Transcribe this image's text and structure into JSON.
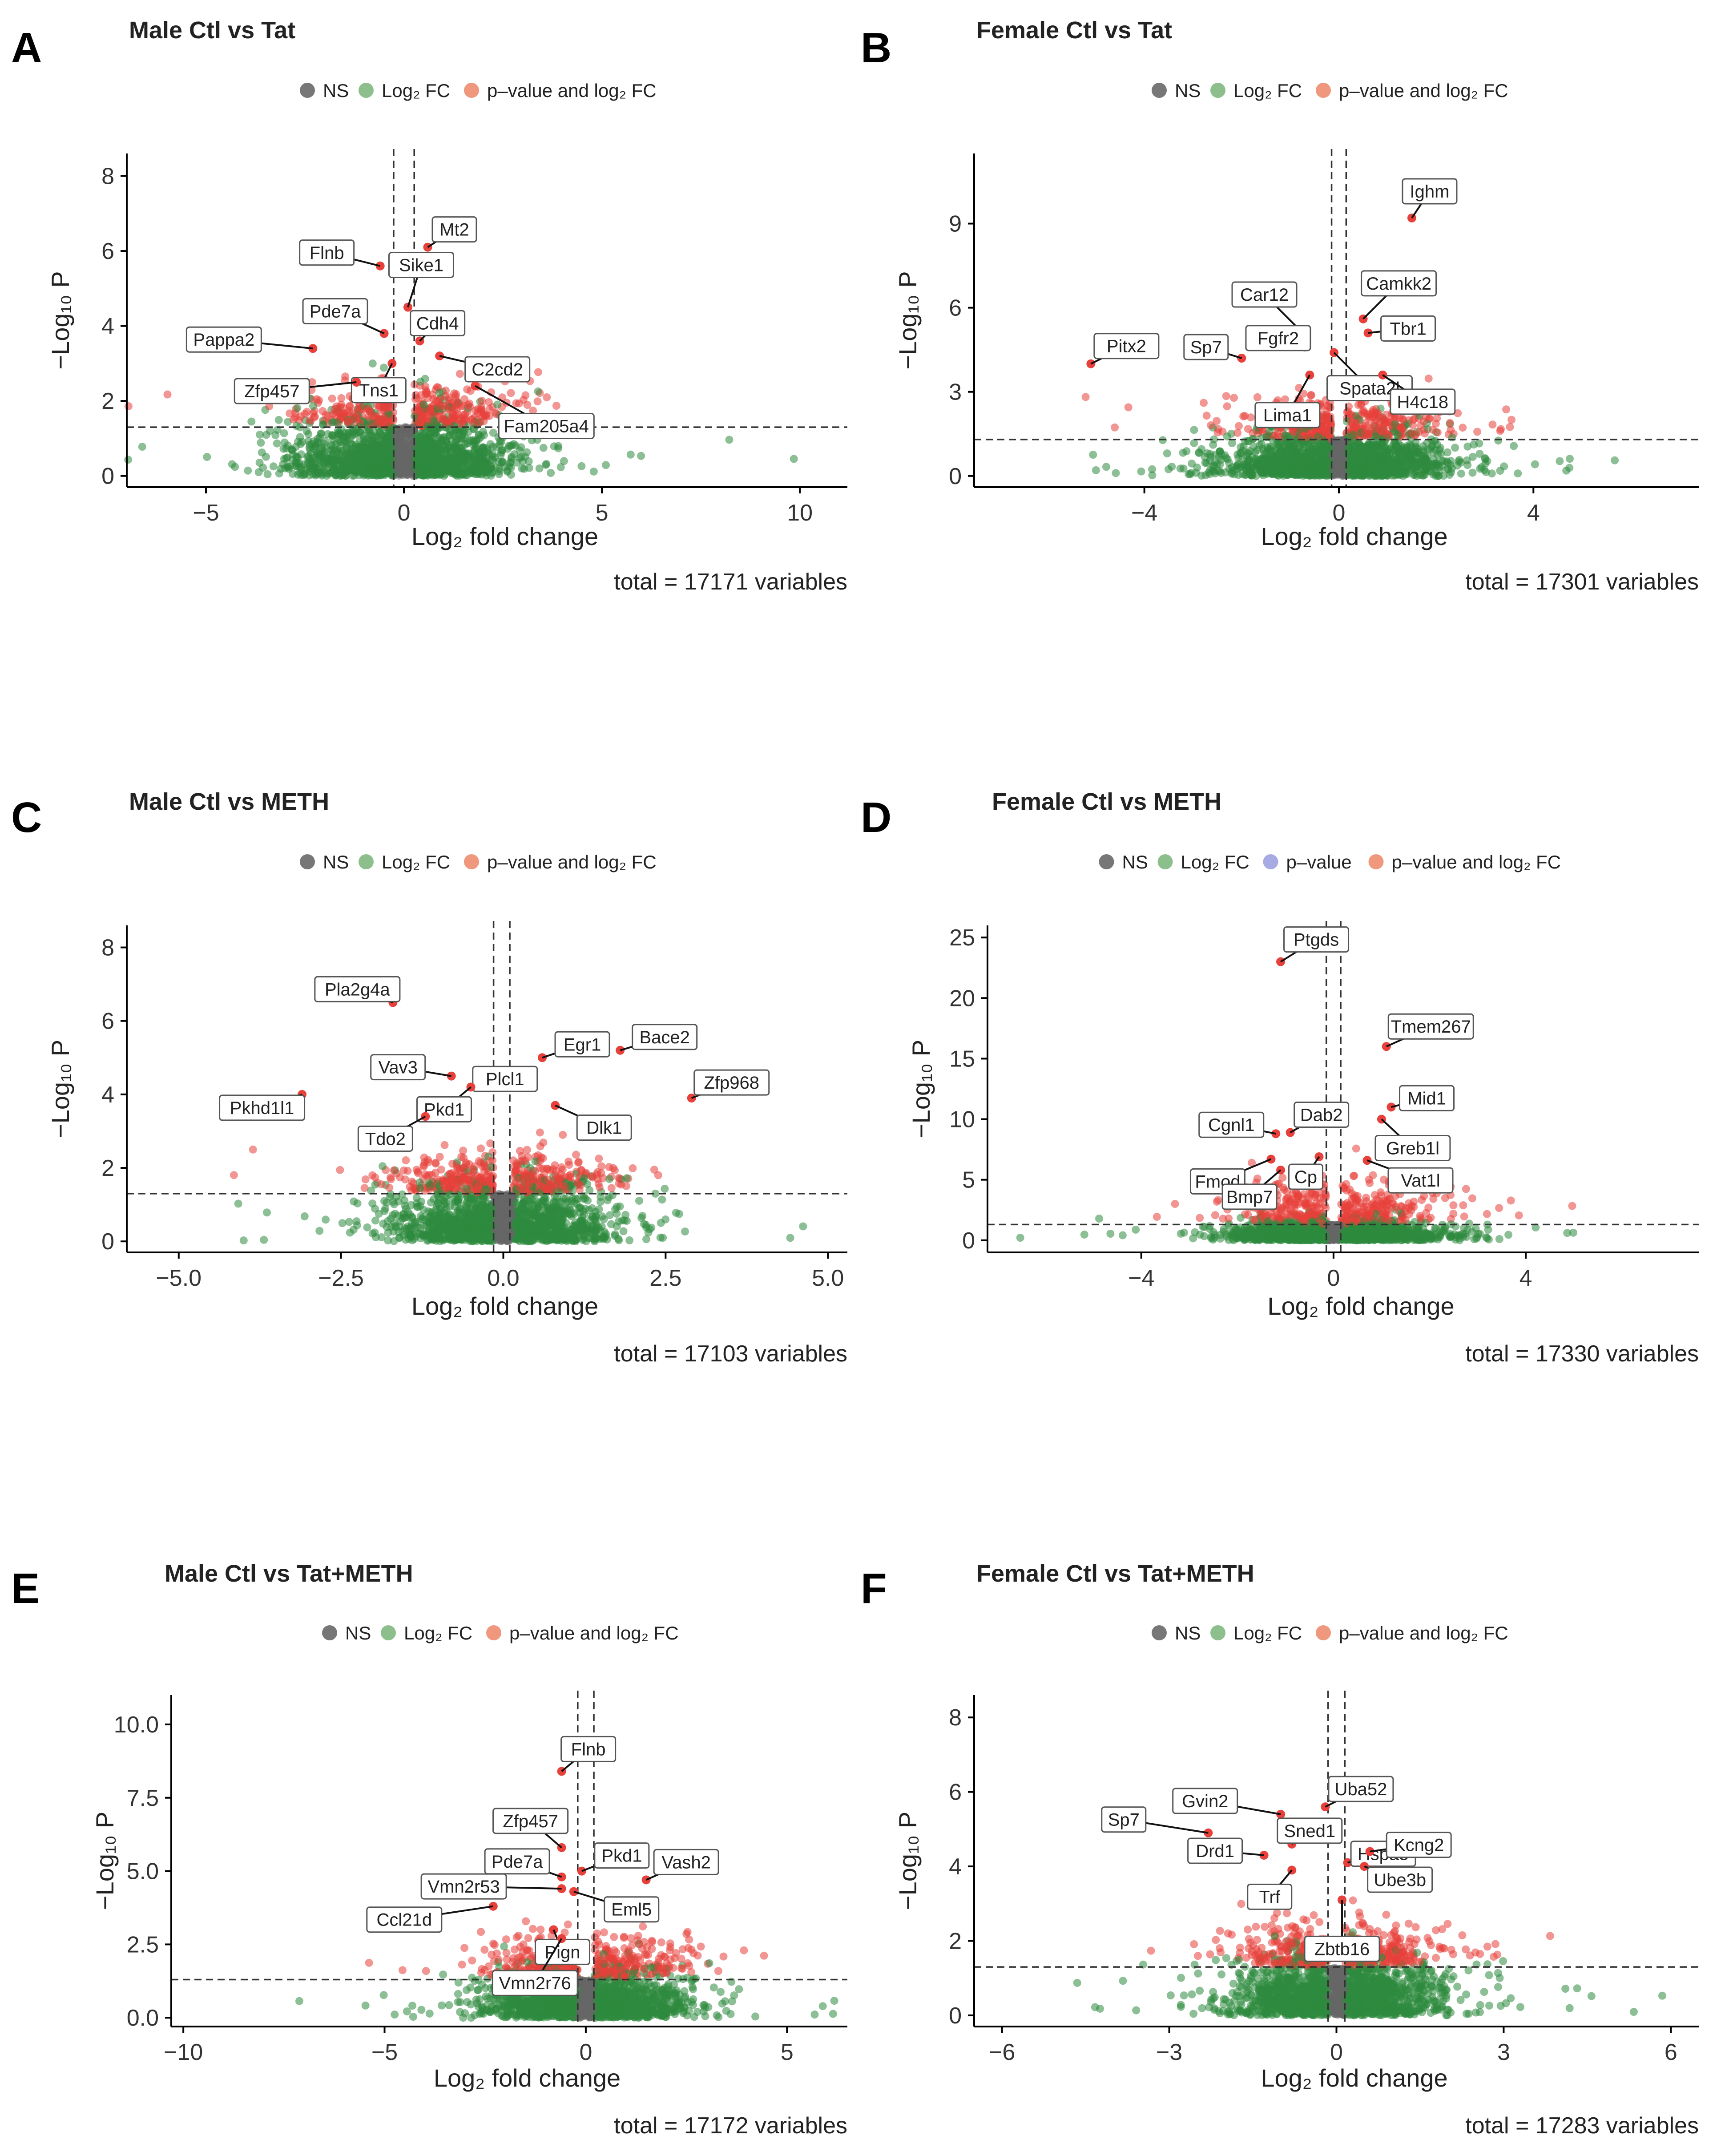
{
  "figure": {
    "legend": {
      "ns": "NS",
      "log2fc": "Log₂ FC",
      "pvalue": "p–value",
      "pvalue_and_log2fc": "p–value and log₂ FC"
    },
    "colors": {
      "ns": "#666666",
      "log2fc": "#2e8b3e",
      "pvalue": "#9fa5e0",
      "both": "#e8403a",
      "legend_ns": "#777777",
      "legend_log2fc": "#8cbf8c",
      "legend_both": "#f0987d",
      "legend_pvalue": "#a8abe3"
    }
  },
  "chart_data": [
    {
      "panel": "A",
      "type": "scatter",
      "title": "Male Ctl vs Tat",
      "xlabel": "Log₂ fold change",
      "ylabel": "−Log₁₀ P",
      "caption": "total = 17171 variables",
      "legend": [
        "NS",
        "Log₂ FC",
        "p–value and log₂ FC"
      ],
      "xlim": [
        -7.0,
        11.2
      ],
      "ylim": [
        -0.3,
        8.6
      ],
      "xticks": [
        -5,
        0,
        5,
        10
      ],
      "yticks": [
        0,
        2,
        4,
        6,
        8
      ],
      "fc_cutoff": [
        -0.26,
        0.26
      ],
      "p_cutoff": 1.3,
      "labels": [
        {
          "gene": "Flnb",
          "x": -0.6,
          "y": 5.6
        },
        {
          "gene": "Mt2",
          "x": 0.6,
          "y": 6.1
        },
        {
          "gene": "Sike1",
          "x": 0.1,
          "y": 4.5
        },
        {
          "gene": "Pde7a",
          "x": -0.5,
          "y": 3.8
        },
        {
          "gene": "Cdh4",
          "x": 0.4,
          "y": 3.6
        },
        {
          "gene": "Pappa2",
          "x": -2.3,
          "y": 3.4
        },
        {
          "gene": "C2cd2",
          "x": 0.9,
          "y": 3.2
        },
        {
          "gene": "Tns1",
          "x": -0.3,
          "y": 3.0
        },
        {
          "gene": "Zfp457",
          "x": -1.2,
          "y": 2.5
        },
        {
          "gene": "Fam205a4",
          "x": 1.8,
          "y": 2.4
        }
      ]
    },
    {
      "panel": "B",
      "type": "scatter",
      "title": "Female Ctl vs Tat",
      "xlabel": "Log₂ fold change",
      "ylabel": "−Log₁₀ P",
      "caption": "total = 17301 variables",
      "legend": [
        "NS",
        "Log₂ FC",
        "p–value and log₂ FC"
      ],
      "xlim": [
        -7.5,
        7.4
      ],
      "ylim": [
        -0.4,
        11.5
      ],
      "xticks": [
        -4,
        0,
        4
      ],
      "yticks": [
        0,
        3,
        6,
        9
      ],
      "fc_cutoff": [
        -0.15,
        0.15
      ],
      "p_cutoff": 1.3,
      "labels": [
        {
          "gene": "Ighm",
          "x": 1.5,
          "y": 9.2
        },
        {
          "gene": "Car12",
          "x": -0.8,
          "y": 5.2
        },
        {
          "gene": "Camkk2",
          "x": 0.5,
          "y": 5.6
        },
        {
          "gene": "Tbr1",
          "x": 0.6,
          "y": 5.1
        },
        {
          "gene": "Fgfr2",
          "x": -0.7,
          "y": 4.6
        },
        {
          "gene": "Spata2l",
          "x": -0.1,
          "y": 4.4
        },
        {
          "gene": "Pitx2",
          "x": -5.1,
          "y": 4.0
        },
        {
          "gene": "Sp7",
          "x": -2.0,
          "y": 4.2
        },
        {
          "gene": "Lima1",
          "x": -0.6,
          "y": 3.6
        },
        {
          "gene": "H4c18",
          "x": 0.9,
          "y": 3.6
        }
      ]
    },
    {
      "panel": "C",
      "type": "scatter",
      "title": "Male Ctl vs METH",
      "xlabel": "Log₂ fold change",
      "ylabel": "−Log₁₀ P",
      "caption": "total = 17103 variables",
      "legend": [
        "NS",
        "Log₂ FC",
        "p–value and log₂ FC"
      ],
      "xlim": [
        -5.8,
        5.3
      ],
      "ylim": [
        -0.3,
        8.6
      ],
      "xticks": [
        -5.0,
        -2.5,
        0.0,
        2.5,
        5.0
      ],
      "yticks": [
        0,
        2,
        4,
        6,
        8
      ],
      "fc_cutoff": [
        -0.15,
        0.1
      ],
      "p_cutoff": 1.3,
      "labels": [
        {
          "gene": "Pla2g4a",
          "x": -1.7,
          "y": 6.5
        },
        {
          "gene": "Bace2",
          "x": 1.8,
          "y": 5.2
        },
        {
          "gene": "Egr1",
          "x": 0.6,
          "y": 5.0
        },
        {
          "gene": "Vav3",
          "x": -0.8,
          "y": 4.5
        },
        {
          "gene": "Plcl1",
          "x": 0.3,
          "y": 4.3
        },
        {
          "gene": "Zfp968",
          "x": 2.9,
          "y": 3.9
        },
        {
          "gene": "Pkhd1l1",
          "x": -3.1,
          "y": 4.0
        },
        {
          "gene": "Pkd1",
          "x": -0.5,
          "y": 4.2
        },
        {
          "gene": "Dlk1",
          "x": 0.8,
          "y": 3.7
        },
        {
          "gene": "Tdo2",
          "x": -1.2,
          "y": 3.4
        }
      ]
    },
    {
      "panel": "D",
      "type": "scatter",
      "title": "Female Ctl vs METH",
      "xlabel": "Log₂ fold change",
      "ylabel": "−Log₁₀ P",
      "caption": "total = 17330 variables",
      "legend": [
        "NS",
        "Log₂ FC",
        "p–value",
        "p–value and log₂ FC"
      ],
      "xlim": [
        -7.2,
        7.6
      ],
      "ylim": [
        -1.0,
        26.0
      ],
      "xticks": [
        -4,
        0,
        4
      ],
      "yticks": [
        0,
        5,
        10,
        15,
        20,
        25
      ],
      "fc_cutoff": [
        -0.15,
        0.15
      ],
      "p_cutoff": 1.3,
      "labels": [
        {
          "gene": "Ptgds",
          "x": -1.1,
          "y": 23.0
        },
        {
          "gene": "Tmem267",
          "x": 1.1,
          "y": 16.0
        },
        {
          "gene": "Mid1",
          "x": 1.2,
          "y": 11.0
        },
        {
          "gene": "Dab2",
          "x": -0.9,
          "y": 8.9
        },
        {
          "gene": "Cgnl1",
          "x": -1.2,
          "y": 8.8
        },
        {
          "gene": "Greb1l",
          "x": 1.0,
          "y": 10.0
        },
        {
          "gene": "Fmod",
          "x": -1.3,
          "y": 6.7
        },
        {
          "gene": "Cp",
          "x": -0.3,
          "y": 6.9
        },
        {
          "gene": "Vat1l",
          "x": 0.7,
          "y": 6.6
        },
        {
          "gene": "Bmp7",
          "x": -1.1,
          "y": 5.8
        }
      ]
    },
    {
      "panel": "E",
      "type": "scatter",
      "title": "Male Ctl vs Tat+METH",
      "xlabel": "Log₂ fold change",
      "ylabel": "−Log₁₀ P",
      "caption": "total = 17172 variables",
      "legend": [
        "NS",
        "Log₂ FC",
        "p–value and log₂ FC"
      ],
      "xlim": [
        -10.3,
        6.5
      ],
      "ylim": [
        -0.3,
        11.0
      ],
      "xticks": [
        -10,
        -5,
        0,
        5
      ],
      "yticks": [
        0.0,
        2.5,
        5.0,
        7.5,
        10.0
      ],
      "fc_cutoff": [
        -0.2,
        0.2
      ],
      "p_cutoff": 1.3,
      "labels": [
        {
          "gene": "Flnb",
          "x": -0.6,
          "y": 8.4
        },
        {
          "gene": "Zfp457",
          "x": -0.6,
          "y": 5.8
        },
        {
          "gene": "Pkd1",
          "x": -0.1,
          "y": 5.0
        },
        {
          "gene": "Vash2",
          "x": 1.5,
          "y": 4.7
        },
        {
          "gene": "Pde7a",
          "x": -0.6,
          "y": 4.8
        },
        {
          "gene": "Vmn2r53",
          "x": -0.6,
          "y": 4.4
        },
        {
          "gene": "Eml5",
          "x": -0.3,
          "y": 4.3
        },
        {
          "gene": "Ccl21d",
          "x": -2.3,
          "y": 3.8
        },
        {
          "gene": "Pign",
          "x": -0.8,
          "y": 3.0
        },
        {
          "gene": "Vmn2r76",
          "x": -0.6,
          "y": 2.7
        }
      ]
    },
    {
      "panel": "F",
      "type": "scatter",
      "title": "Female Ctl vs Tat+METH",
      "xlabel": "Log₂ fold change",
      "ylabel": "−Log₁₀ P",
      "caption": "total = 17283 variables",
      "legend": [
        "NS",
        "Log₂ FC",
        "p–value and log₂ FC"
      ],
      "xlim": [
        -6.5,
        6.5
      ],
      "ylim": [
        -0.3,
        8.6
      ],
      "xticks": [
        -6,
        -3,
        0,
        3,
        6
      ],
      "yticks": [
        0,
        2,
        4,
        6,
        8
      ],
      "fc_cutoff": [
        -0.15,
        0.15
      ],
      "p_cutoff": 1.3,
      "labels": [
        {
          "gene": "Gvin2",
          "x": -1.0,
          "y": 5.4
        },
        {
          "gene": "Uba52",
          "x": -0.2,
          "y": 5.6
        },
        {
          "gene": "Sned1",
          "x": -0.8,
          "y": 4.6
        },
        {
          "gene": "Sp7",
          "x": -2.3,
          "y": 4.9
        },
        {
          "gene": "Hspa5",
          "x": 0.2,
          "y": 4.1
        },
        {
          "gene": "Kcng2",
          "x": 0.6,
          "y": 4.4
        },
        {
          "gene": "Drd1",
          "x": -1.3,
          "y": 4.3
        },
        {
          "gene": "Trf",
          "x": -0.8,
          "y": 3.9
        },
        {
          "gene": "Ube3b",
          "x": 0.5,
          "y": 4.0
        },
        {
          "gene": "Zbtb16",
          "x": 0.1,
          "y": 3.1
        }
      ]
    }
  ]
}
